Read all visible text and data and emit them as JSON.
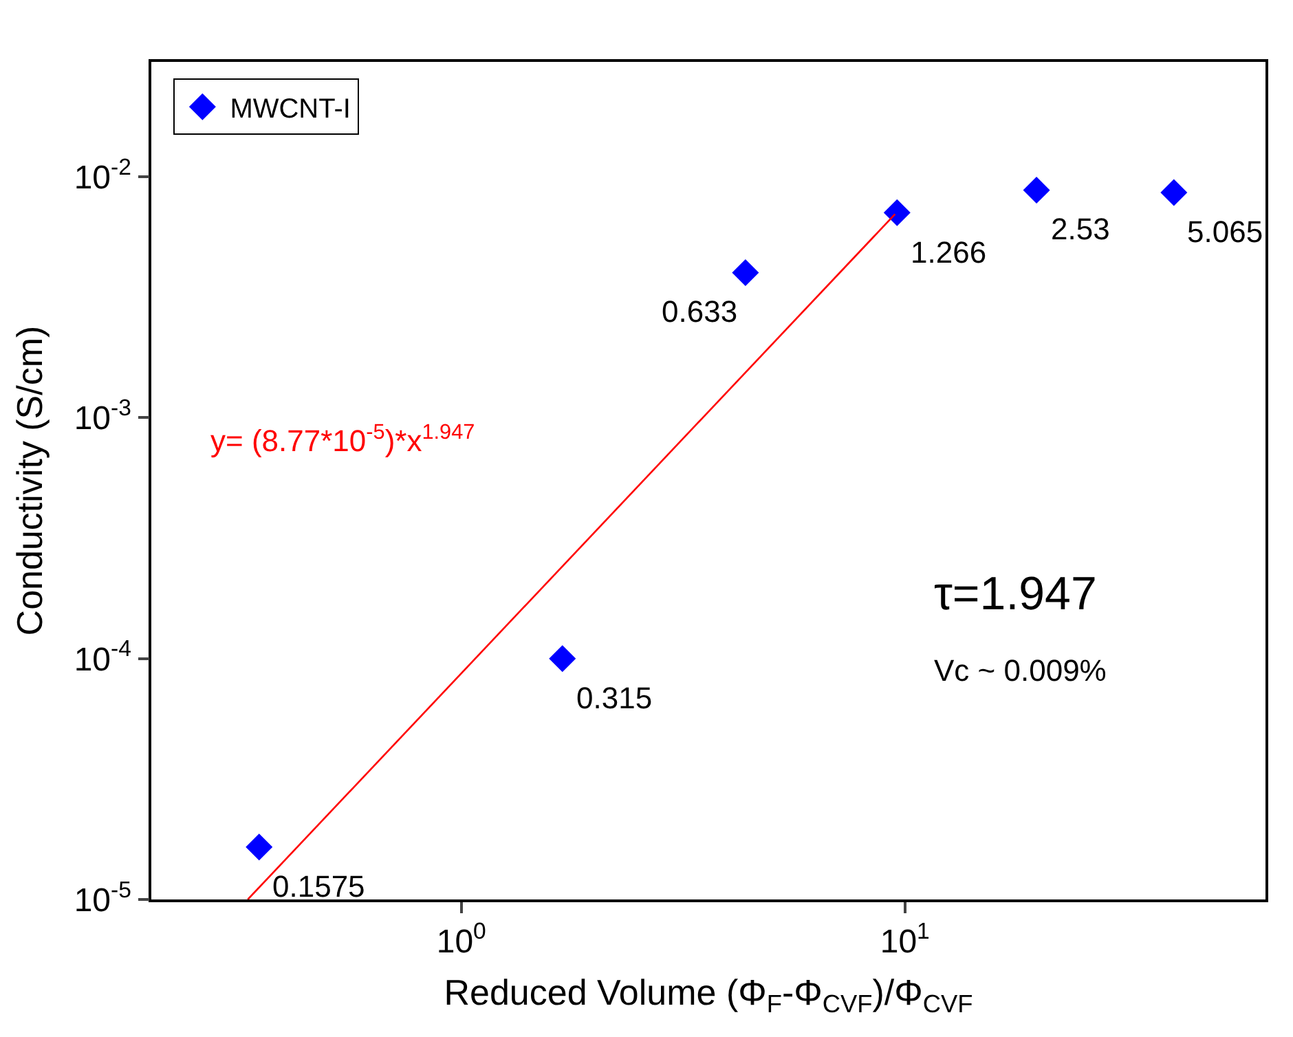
{
  "chart_data": {
    "type": "scatter",
    "xlabel": "Reduced Volume (Φ$_{F}$-Φ$_{CVF}$)/Φ$_{CVF}$",
    "ylabel": "Conductivity (S/cm)",
    "log": "xy",
    "xlim": [
      0.2,
      65
    ],
    "ylim": [
      1e-05,
      0.03
    ],
    "xticks": [
      {
        "value": 1,
        "label": "10$^{0}$"
      },
      {
        "value": 10,
        "label": "10$^{1}$"
      }
    ],
    "yticks": [
      {
        "value": 1e-05,
        "label": "10$^{-5}$"
      },
      {
        "value": 0.0001,
        "label": "10$^{-4}$"
      },
      {
        "value": 0.001,
        "label": "10$^{-3}$"
      },
      {
        "value": 0.01,
        "label": "10$^{-2}$"
      }
    ],
    "legend": "top left",
    "series": [
      {
        "name": "MWCNT-I",
        "color": "#0000ff",
        "marker": "diamond",
        "x": [
          0.35,
          1.69,
          4.37,
          9.6,
          19.8,
          40.4
        ],
        "values": [
          1.65e-05,
          0.0001,
          0.004,
          0.0071,
          0.0088,
          0.0086
        ]
      },
      {
        "type": "line",
        "color": "#ff0000",
        "marker": "none",
        "line_style": "solid",
        "x": [
          0.33,
          9.5
        ],
        "values": [
          1e-05,
          0.007
        ]
      }
    ],
    "annotations": [
      {
        "text": "0.1575",
        "x": 0.35,
        "y": 1.65e-05
      },
      {
        "text": "0.315",
        "x": 1.69,
        "y": 0.0001
      },
      {
        "text": "0.633",
        "x": 4.37,
        "y": 0.004
      },
      {
        "text": "1.266",
        "x": 9.6,
        "y": 0.0071
      },
      {
        "text": "2.53",
        "x": 19.8,
        "y": 0.0088
      },
      {
        "text": "5.065",
        "x": 40.4,
        "y": 0.0086
      },
      "y= (8.77*10$^{-5}$)*x$^{1.947}$",
      "τ=1.947",
      "Vc ~ 0.009%"
    ]
  }
}
